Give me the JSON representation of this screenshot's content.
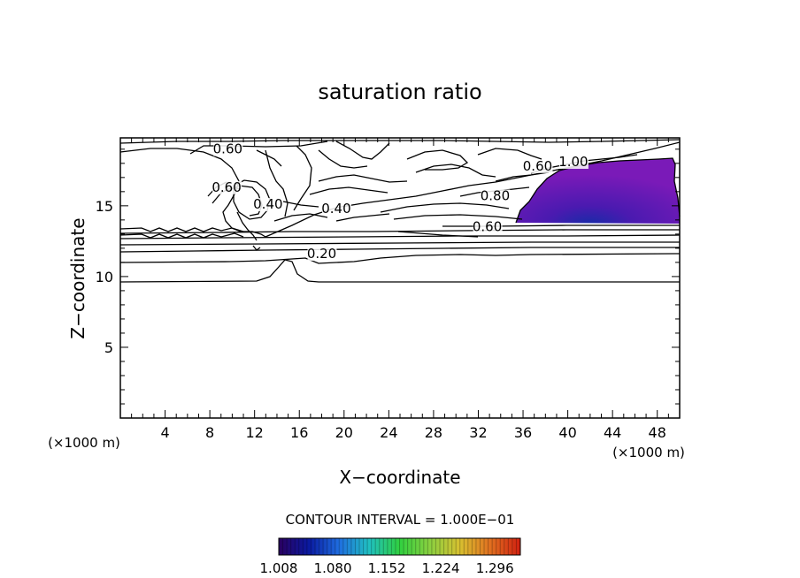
{
  "chart_data": {
    "type": "contour",
    "title": "saturation ratio",
    "xlabel": "X−coordinate",
    "ylabel": "Z−coordinate",
    "x_unit_label": "(×1000 m)",
    "y_unit_label": "(×1000 m)",
    "xlim": [
      0,
      50
    ],
    "ylim": [
      0,
      19.8
    ],
    "x_ticks": [
      4,
      8,
      12,
      16,
      20,
      24,
      28,
      32,
      36,
      40,
      44,
      48
    ],
    "y_ticks": [
      5,
      10,
      15
    ],
    "contour_interval_text": "CONTOUR INTERVAL =  1.000E−01",
    "contour_labels": [
      {
        "text": "0.60",
        "x": 9.6,
        "z": 18.7
      },
      {
        "text": "0.60",
        "x": 9.5,
        "z": 16.0
      },
      {
        "text": "0.40",
        "x": 13.2,
        "z": 14.8
      },
      {
        "text": "0.40",
        "x": 19.3,
        "z": 14.5
      },
      {
        "text": "0.20",
        "x": 18.0,
        "z": 11.3
      },
      {
        "text": "0.80",
        "x": 33.5,
        "z": 15.4
      },
      {
        "text": "0.60",
        "x": 32.8,
        "z": 13.2
      },
      {
        "text": "0.60",
        "x": 37.3,
        "z": 17.5
      },
      {
        "text": "1.00",
        "x": 40.5,
        "z": 17.8
      }
    ],
    "colorbar": {
      "labels": [
        "1.008",
        "1.080",
        "1.152",
        "1.224",
        "1.296"
      ],
      "min": 1.008,
      "max": 1.33,
      "colors": [
        "#2a0060",
        "#0a1aa0",
        "#1f6ee0",
        "#20c0c0",
        "#30d040",
        "#8ad040",
        "#d8c030",
        "#e07020",
        "#d02010"
      ]
    },
    "fill_region_color": "#7a1ab8",
    "fill_core_color": "#1a2aa8"
  }
}
